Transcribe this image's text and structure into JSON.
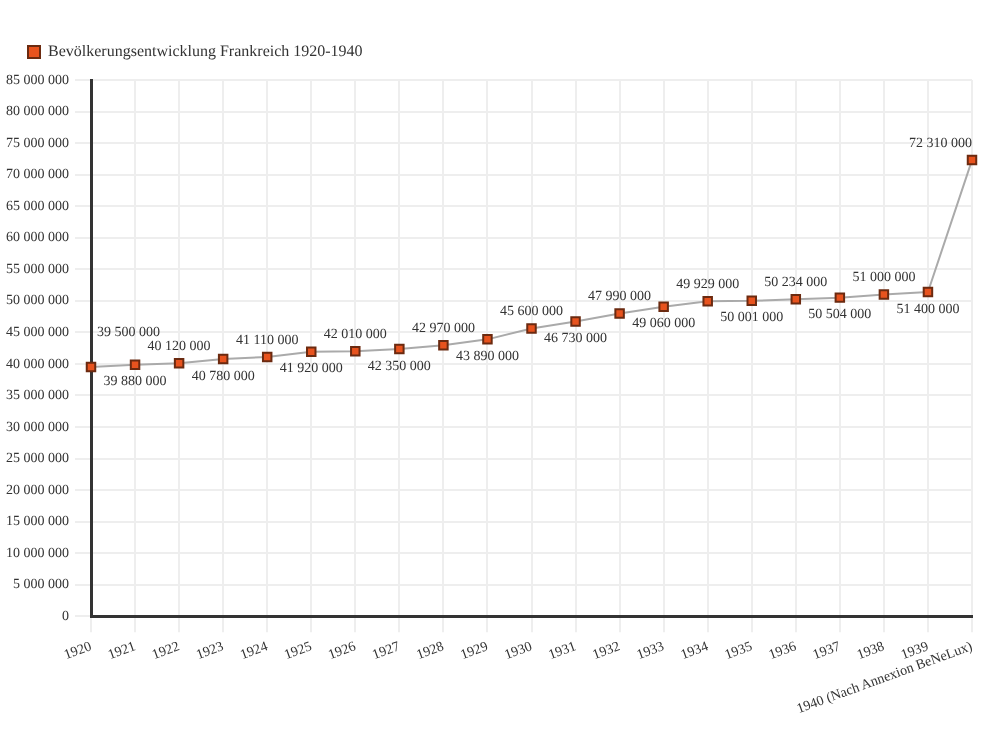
{
  "chart_data": {
    "type": "line",
    "categories": [
      "1920",
      "1921",
      "1922",
      "1923",
      "1924",
      "1925",
      "1926",
      "1927",
      "1928",
      "1929",
      "1930",
      "1931",
      "1932",
      "1933",
      "1934",
      "1935",
      "1936",
      "1937",
      "1938",
      "1939",
      "1940 (Nach Annexion BeNeLux)"
    ],
    "series": [
      {
        "name": "Bevölkerungsentwicklung Frankreich 1920-1940",
        "color": "#e8531e",
        "values": [
          39500000,
          39880000,
          40120000,
          40780000,
          41110000,
          41920000,
          42010000,
          42350000,
          42970000,
          43890000,
          45600000,
          46730000,
          47990000,
          49060000,
          49929000,
          50001000,
          50234000,
          50504000,
          51000000,
          51400000,
          72310000
        ]
      }
    ],
    "ylim": [
      0,
      85000000
    ],
    "yticks": [
      0,
      5000000,
      10000000,
      15000000,
      20000000,
      25000000,
      30000000,
      35000000,
      40000000,
      45000000,
      50000000,
      55000000,
      60000000,
      65000000,
      70000000,
      75000000,
      80000000,
      85000000
    ],
    "grid": true,
    "legend": "top left",
    "marker": "square",
    "line_style": "solid",
    "data_labels": true
  }
}
